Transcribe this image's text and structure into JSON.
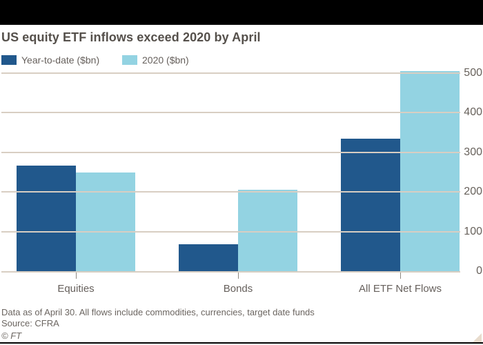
{
  "title": "US equity ETF inflows exceed 2020 by April",
  "legend": [
    {
      "label": "Year-to-date ($bn)",
      "color": "#21588c"
    },
    {
      "label": "2020 ($bn)",
      "color": "#93d3e2"
    }
  ],
  "chart_data": {
    "type": "bar",
    "categories": [
      "Equities",
      "Bonds",
      "All ETF Net Flows"
    ],
    "series": [
      {
        "name": "Year-to-date ($bn)",
        "color": "#21588c",
        "values": [
          267,
          68,
          334
        ]
      },
      {
        "name": "2020 ($bn)",
        "color": "#93d3e2",
        "values": [
          250,
          205,
          505
        ]
      }
    ],
    "title": "US equity ETF inflows exceed 2020 by April",
    "xlabel": "",
    "ylabel": "",
    "yticks": [
      0,
      100,
      200,
      300,
      400,
      500
    ],
    "ylim": [
      0,
      500
    ],
    "grid": true,
    "grid_color": "#d8cec2",
    "legend_position": "top-left",
    "y_axis_side": "right"
  },
  "footer": {
    "note": "Data as of April 30. All flows include commodities, currencies, target date funds",
    "source": "Source: CFRA",
    "copyright": "© FT"
  },
  "colors": {
    "top_band": "#000000",
    "bottom_rule": "#000000",
    "title_text": "#55504b",
    "body_text": "#66605c",
    "gridline": "#d8cec2",
    "dark_blue": "#21588c",
    "light_blue": "#93d3e2",
    "corner_triangle": "#e8dccd"
  }
}
